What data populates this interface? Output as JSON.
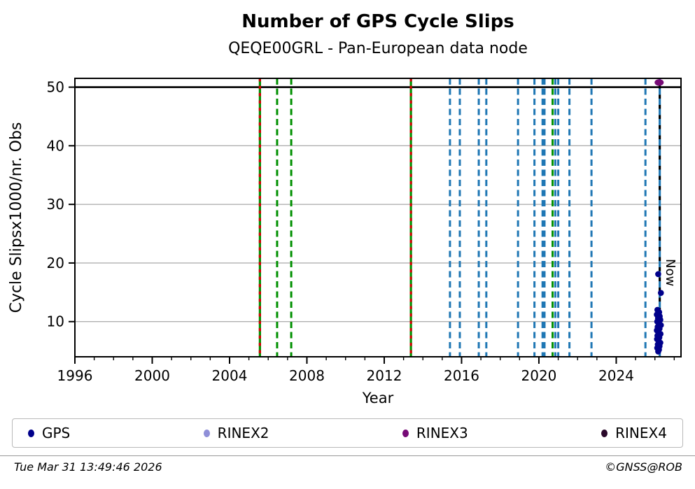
{
  "title": "Number of GPS Cycle Slips",
  "subtitle": "QEQE00GRL - Pan-European data node",
  "footer": {
    "timestamp": "Tue Mar 31 13:49:46 2026",
    "credit": "©GNSS@ROB"
  },
  "legend": [
    {
      "label": "GPS",
      "color": "#00008b"
    },
    {
      "label": "RINEX2",
      "color": "#8f8fd8"
    },
    {
      "label": "RINEX3",
      "color": "#760a76"
    },
    {
      "label": "RINEX4",
      "color": "#2a082a"
    }
  ],
  "chart_data": {
    "type": "scatter",
    "title": "Number of GPS Cycle Slips",
    "subtitle": "QEQE00GRL - Pan-European data node",
    "xlabel": "Year",
    "ylabel": "Cycle Slipsx1000/nr. Obs",
    "xlim": [
      1996,
      2027.35
    ],
    "ylim": [
      4,
      51.5
    ],
    "xticks": [
      1996,
      2000,
      2004,
      2008,
      2012,
      2016,
      2020,
      2024
    ],
    "yticks": [
      10,
      20,
      30,
      40,
      50
    ],
    "grid": true,
    "hline_black": 50,
    "now_label": "Now",
    "now_year": 2026.25,
    "colors": {
      "blue": "#1f77b4",
      "green": "#009000",
      "red": "#cf0000",
      "grid": "#b0b0b0"
    },
    "vlines": [
      {
        "year": 2005.57,
        "style": "green-solid-red-dashed"
      },
      {
        "year": 2006.46,
        "style": "green-dashed"
      },
      {
        "year": 2007.19,
        "style": "green-dashed"
      },
      {
        "year": 2013.38,
        "style": "green-solid-red-dashed"
      },
      {
        "year": 2015.4,
        "style": "blue-dashed"
      },
      {
        "year": 2015.91,
        "style": "blue-dashed"
      },
      {
        "year": 2016.89,
        "style": "blue-dashed"
      },
      {
        "year": 2017.28,
        "style": "blue-dashed"
      },
      {
        "year": 2018.92,
        "style": "blue-dashed"
      },
      {
        "year": 2019.77,
        "style": "blue-dashed"
      },
      {
        "year": 2020.19,
        "style": "blue-dashed"
      },
      {
        "year": 2020.29,
        "style": "blue-dashed"
      },
      {
        "year": 2020.71,
        "style": "green-dashed"
      },
      {
        "year": 2020.85,
        "style": "blue-dashed"
      },
      {
        "year": 2021.0,
        "style": "blue-dashed"
      },
      {
        "year": 2021.58,
        "style": "blue-dashed"
      },
      {
        "year": 2022.72,
        "style": "blue-dashed"
      },
      {
        "year": 2025.51,
        "style": "blue-dashed"
      }
    ],
    "series": [
      {
        "name": "GPS",
        "color": "#00008b",
        "points": [
          [
            2026.17,
            18.1
          ],
          [
            2026.31,
            14.9
          ],
          [
            2026.13,
            12.0
          ],
          [
            2026.22,
            11.6
          ],
          [
            2026.1,
            11.2
          ],
          [
            2026.25,
            10.9
          ],
          [
            2026.16,
            10.6
          ],
          [
            2026.28,
            10.3
          ],
          [
            2026.12,
            10.0
          ],
          [
            2026.21,
            9.7
          ],
          [
            2026.31,
            9.4
          ],
          [
            2026.14,
            9.1
          ],
          [
            2026.24,
            8.8
          ],
          [
            2026.1,
            8.5
          ],
          [
            2026.19,
            8.2
          ],
          [
            2026.29,
            7.9
          ],
          [
            2026.13,
            7.6
          ],
          [
            2026.23,
            7.3
          ],
          [
            2026.11,
            7.0
          ],
          [
            2026.2,
            6.7
          ],
          [
            2026.28,
            6.4
          ],
          [
            2026.15,
            6.1
          ],
          [
            2026.24,
            5.8
          ],
          [
            2026.12,
            5.5
          ],
          [
            2026.21,
            5.2
          ],
          [
            2026.17,
            4.9
          ]
        ]
      },
      {
        "name": "RINEX2",
        "color": "#8f8fd8",
        "points": []
      },
      {
        "name": "RINEX3",
        "color": "#760a76",
        "points": [
          [
            2026.22,
            50.8
          ]
        ]
      },
      {
        "name": "RINEX4",
        "color": "#2a082a",
        "points": []
      }
    ]
  }
}
